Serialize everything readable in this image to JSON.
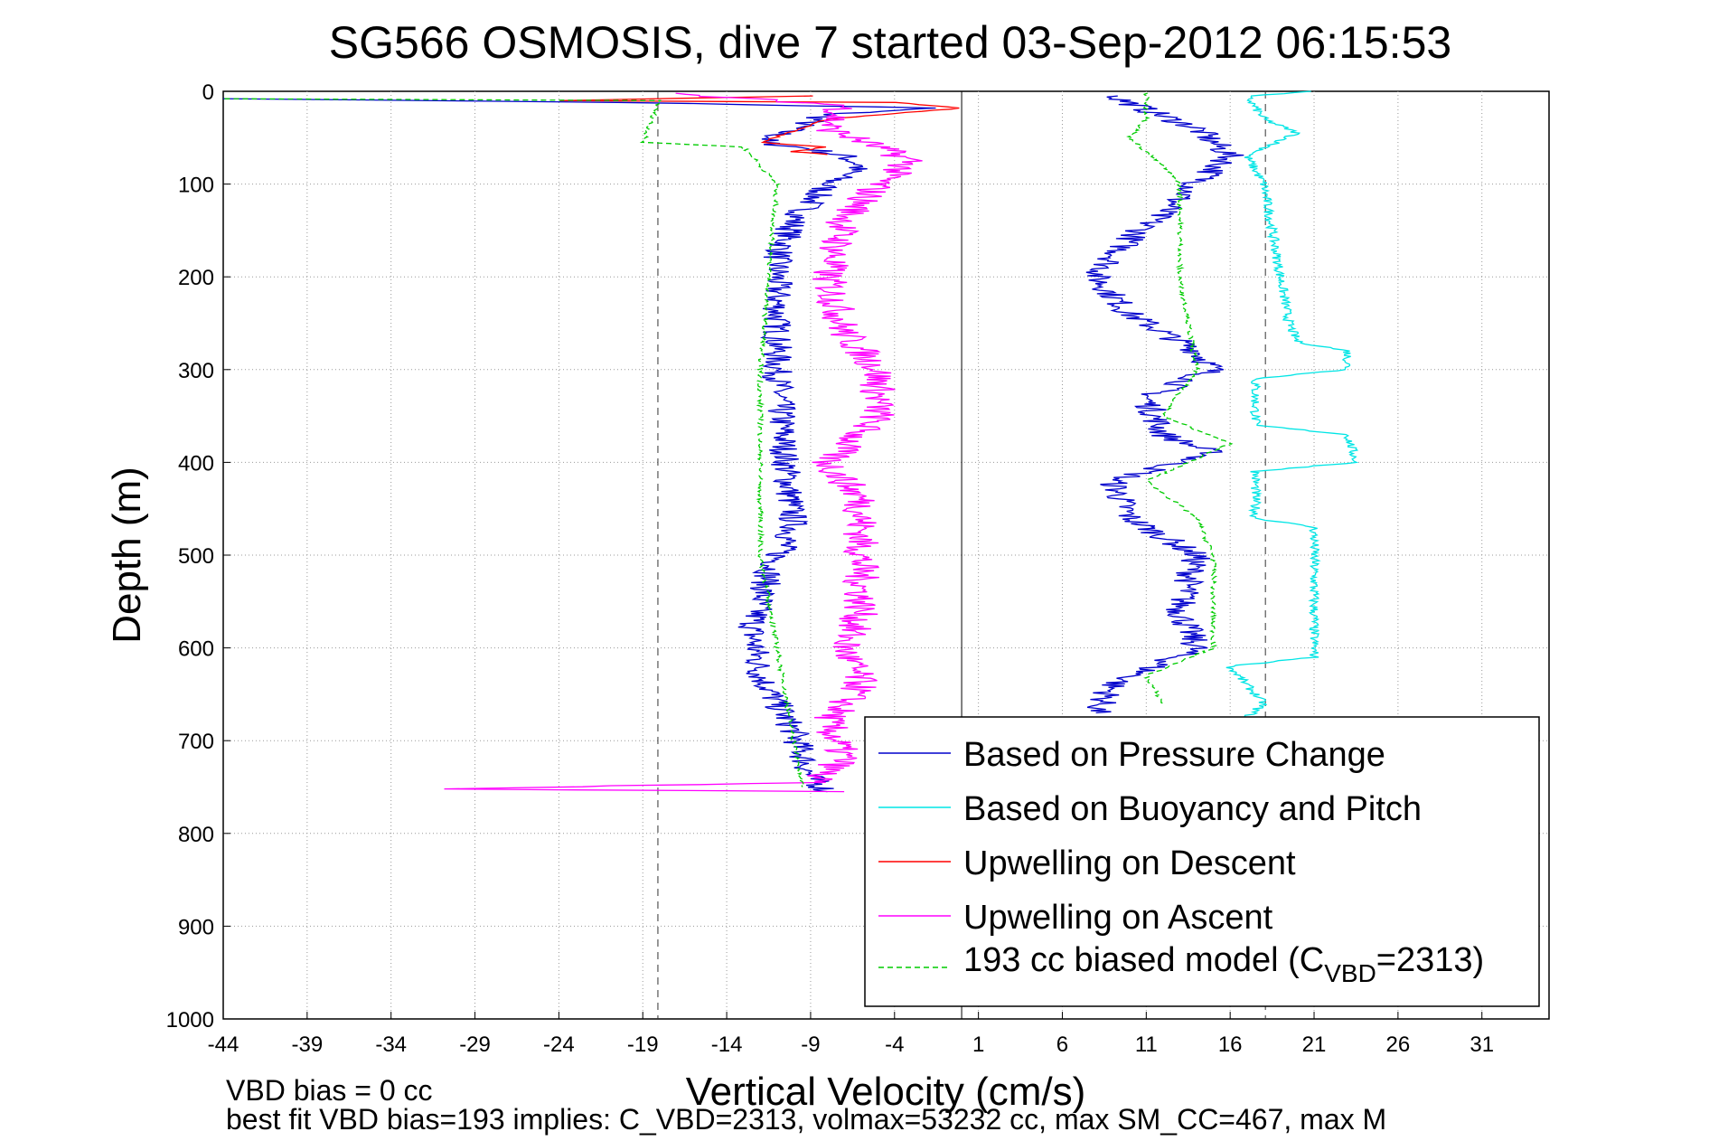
{
  "chart_data": {
    "type": "line",
    "title": "SG566 OSMOSIS, dive 7 started 03-Sep-2012 06:15:53",
    "xlabel": "Vertical Velocity (cm/s)",
    "ylabel": "Depth (m)",
    "xlim": [
      -44,
      35
    ],
    "ylim": [
      0,
      1000
    ],
    "y_reversed": true,
    "grid": true,
    "x_ticks": [
      -44,
      -39,
      -34,
      -29,
      -24,
      -19,
      -14,
      -9,
      -4,
      1,
      6,
      11,
      16,
      21,
      26,
      31
    ],
    "y_ticks": [
      0,
      100,
      200,
      300,
      400,
      500,
      600,
      700,
      800,
      900,
      1000
    ],
    "reference_lines": [
      {
        "style": "dashed",
        "x": -18.1
      },
      {
        "style": "solid",
        "x": 0
      },
      {
        "style": "dashed",
        "x": 18.1
      }
    ],
    "legend": {
      "position": "bottom-right",
      "entries": [
        {
          "label": "Based on Pressure Change",
          "color": "#0000cc",
          "style": "solid"
        },
        {
          "label": "Based on Buoyancy and Pitch",
          "color": "#00e5e5",
          "style": "solid"
        },
        {
          "label": "Upwelling on Descent",
          "color": "#ff0000",
          "style": "solid"
        },
        {
          "label": "Upwelling on Ascent",
          "color": "#ff00ff",
          "style": "solid"
        },
        {
          "label": "193 cc biased model (C",
          "sub": "VBD",
          "suffix": "=2313)",
          "color": "#00cc00",
          "style": "dashed"
        }
      ]
    },
    "series": [
      {
        "name": "Pressure Change (descent)",
        "color": "#0000cc",
        "x_offset": 0,
        "noise": 0.9,
        "points": [
          [
            -44,
            8
          ],
          [
            -20,
            12
          ],
          [
            -2,
            18
          ],
          [
            -8,
            25
          ],
          [
            -10,
            40
          ],
          [
            -12,
            55
          ],
          [
            -9,
            62
          ],
          [
            -7,
            70
          ],
          [
            -6,
            80
          ],
          [
            -8,
            100
          ],
          [
            -10,
            140
          ],
          [
            -11,
            180
          ],
          [
            -11,
            250
          ],
          [
            -11,
            300
          ],
          [
            -10.5,
            400
          ],
          [
            -10,
            470
          ],
          [
            -11.5,
            520
          ],
          [
            -12.5,
            580
          ],
          [
            -12,
            630
          ],
          [
            -10,
            690
          ],
          [
            -9,
            740
          ],
          [
            -8,
            755
          ]
        ]
      },
      {
        "name": "Pressure Change (ascent)",
        "color": "#0000cc",
        "x_offset": 0,
        "noise": 0.9,
        "points": [
          [
            9,
            5
          ],
          [
            11,
            20
          ],
          [
            14,
            40
          ],
          [
            16,
            70
          ],
          [
            14,
            100
          ],
          [
            10,
            160
          ],
          [
            8,
            200
          ],
          [
            10,
            240
          ],
          [
            14,
            280
          ],
          [
            15,
            300
          ],
          [
            11,
            330
          ],
          [
            12,
            370
          ],
          [
            15,
            390
          ],
          [
            9,
            420
          ],
          [
            10,
            460
          ],
          [
            14,
            500
          ],
          [
            13,
            560
          ],
          [
            14,
            600
          ],
          [
            9,
            640
          ],
          [
            8,
            670
          ]
        ]
      },
      {
        "name": "Buoyancy and Pitch",
        "color": "#00e5e5",
        "x_offset": 0,
        "noise": 0.3,
        "points": [
          [
            21,
            0
          ],
          [
            17,
            5
          ],
          [
            18,
            30
          ],
          [
            20,
            45
          ],
          [
            17,
            70
          ],
          [
            18,
            100
          ],
          [
            19,
            200
          ],
          [
            19.5,
            250
          ],
          [
            20,
            270
          ],
          [
            23,
            280
          ],
          [
            23,
            300
          ],
          [
            17.5,
            310
          ],
          [
            17.5,
            360
          ],
          [
            23,
            370
          ],
          [
            23.5,
            400
          ],
          [
            17.5,
            410
          ],
          [
            17.5,
            460
          ],
          [
            21,
            470
          ],
          [
            21,
            610
          ],
          [
            16,
            620
          ],
          [
            18,
            660
          ],
          [
            17,
            675
          ]
        ]
      },
      {
        "name": "Upwelling on Descent",
        "color": "#ff0000",
        "x_offset": 0,
        "noise": 0.2,
        "points": [
          [
            -9,
            5
          ],
          [
            -24,
            10
          ],
          [
            -4,
            12
          ],
          [
            0,
            18
          ],
          [
            -8,
            30
          ],
          [
            -12,
            55
          ],
          [
            -8,
            60
          ],
          [
            -10,
            65
          ],
          [
            -8,
            68
          ]
        ]
      },
      {
        "name": "Upwelling on Ascent",
        "color": "#ff00ff",
        "x_offset": 0,
        "noise": 1.1,
        "points": [
          [
            -18,
            2
          ],
          [
            -7,
            15
          ],
          [
            -8,
            40
          ],
          [
            -5,
            60
          ],
          [
            -3,
            75
          ],
          [
            -5,
            100
          ],
          [
            -7,
            140
          ],
          [
            -8,
            200
          ],
          [
            -7,
            260
          ],
          [
            -5,
            300
          ],
          [
            -5,
            350
          ],
          [
            -8,
            400
          ],
          [
            -6,
            440
          ],
          [
            -6,
            500
          ],
          [
            -6,
            560
          ],
          [
            -7,
            600
          ],
          [
            -6,
            640
          ],
          [
            -8,
            680
          ],
          [
            -7,
            720
          ],
          [
            -9,
            745
          ],
          [
            -31,
            752
          ],
          [
            -7,
            755
          ]
        ]
      },
      {
        "name": "193 cc biased model (descent)",
        "color": "#00cc00",
        "x_offset": 0,
        "noise": 0.15,
        "dashed": true,
        "points": [
          [
            -44,
            8
          ],
          [
            -18,
            10
          ],
          [
            -19,
            55
          ],
          [
            -13,
            60
          ],
          [
            -12,
            80
          ],
          [
            -11,
            100
          ],
          [
            -11.5,
            200
          ],
          [
            -12,
            300
          ],
          [
            -12,
            400
          ],
          [
            -12,
            500
          ],
          [
            -11,
            600
          ],
          [
            -10.5,
            650
          ],
          [
            -10,
            700
          ],
          [
            -9.5,
            750
          ]
        ]
      },
      {
        "name": "193 cc biased model (ascent)",
        "color": "#00cc00",
        "x_offset": 0,
        "noise": 0.15,
        "dashed": true,
        "points": [
          [
            11,
            2
          ],
          [
            11,
            30
          ],
          [
            10,
            50
          ],
          [
            12,
            80
          ],
          [
            13,
            100
          ],
          [
            13,
            200
          ],
          [
            13.5,
            250
          ],
          [
            14,
            300
          ],
          [
            12,
            350
          ],
          [
            16,
            380
          ],
          [
            11,
            420
          ],
          [
            14,
            460
          ],
          [
            15,
            500
          ],
          [
            15,
            600
          ],
          [
            11,
            630
          ],
          [
            12,
            660
          ]
        ]
      }
    ],
    "footnotes": [
      "VBD bias = 0 cc",
      "best fit VBD bias=193 implies: C_VBD=2313, volmax=53232 cc, max SM_CC=467, max M"
    ]
  }
}
